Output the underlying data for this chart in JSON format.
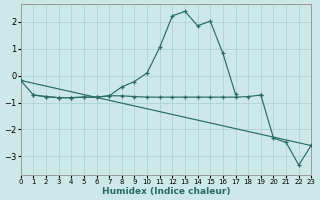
{
  "xlabel": "Humidex (Indice chaleur)",
  "bg_color": "#cce8e8",
  "line_color": "#2a6b65",
  "grid_color": "#aacfcf",
  "xlim": [
    0,
    23
  ],
  "ylim": [
    -3.7,
    2.65
  ],
  "yticks": [
    -3,
    -2,
    -1,
    0,
    1,
    2
  ],
  "xticks": [
    0,
    1,
    2,
    3,
    4,
    5,
    6,
    7,
    8,
    9,
    10,
    11,
    12,
    13,
    14,
    15,
    16,
    17,
    18,
    19,
    20,
    21,
    22,
    23
  ],
  "bell_x": [
    0,
    1,
    2,
    3,
    4,
    5,
    6,
    7,
    8,
    9,
    10,
    11,
    12,
    13,
    14,
    15,
    16,
    17
  ],
  "bell_y": [
    -0.18,
    -0.72,
    -0.78,
    -0.82,
    -0.82,
    -0.8,
    -0.8,
    -0.75,
    -0.42,
    -0.22,
    0.1,
    1.05,
    2.22,
    2.38,
    1.85,
    2.02,
    0.82,
    -0.7
  ],
  "flat_x": [
    1,
    2,
    3,
    4,
    5,
    6,
    7,
    8,
    9,
    10,
    11,
    12,
    13,
    14,
    15,
    16,
    17,
    18,
    19
  ],
  "flat_y": [
    -0.72,
    -0.78,
    -0.82,
    -0.82,
    -0.8,
    -0.8,
    -0.75,
    -0.75,
    -0.78,
    -0.8,
    -0.8,
    -0.8,
    -0.8,
    -0.8,
    -0.8,
    -0.8,
    -0.8,
    -0.78,
    -0.72
  ],
  "trend_x": [
    0,
    23
  ],
  "trend_y": [
    -0.18,
    -2.6
  ],
  "right_x": [
    19,
    20,
    21,
    22,
    23
  ],
  "right_y": [
    -0.72,
    -2.32,
    -2.48,
    -3.32,
    -2.58
  ]
}
